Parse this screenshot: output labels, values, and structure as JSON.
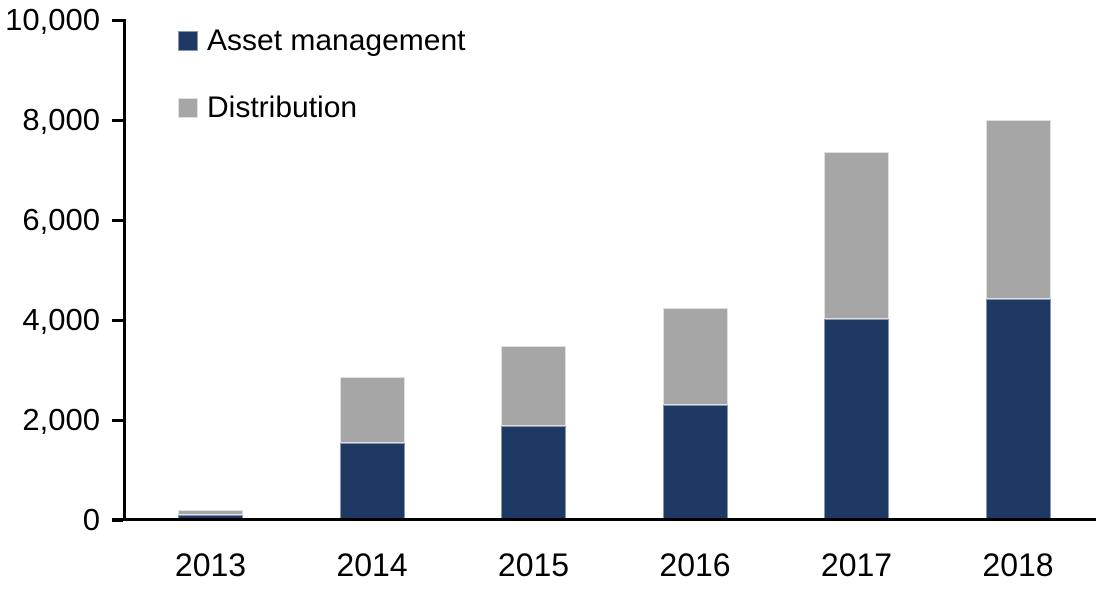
{
  "chart_data": {
    "type": "bar",
    "stacked": true,
    "title": "",
    "xlabel": "",
    "ylabel": "",
    "categories": [
      "2013",
      "2014",
      "2015",
      "2016",
      "2017",
      "2018"
    ],
    "series": [
      {
        "name": "Asset management",
        "color": "#1f3864",
        "border_color": "#8496b0",
        "values": [
          100,
          1550,
          1890,
          2310,
          4030,
          4420
        ]
      },
      {
        "name": "Distribution",
        "color": "#a6a6a6",
        "border_color": "#e0e0e0",
        "values": [
          100,
          1320,
          1590,
          1940,
          3330,
          3580
        ]
      }
    ],
    "ylim": [
      0,
      10000
    ],
    "ytick_step": 2000,
    "ytick_labels": [
      "0",
      "2,000",
      "4,000",
      "6,000",
      "8,000",
      "10,000"
    ],
    "legend_position": "top-left",
    "grid": false,
    "axis_color": "#000000",
    "background_color": "#ffffff"
  }
}
